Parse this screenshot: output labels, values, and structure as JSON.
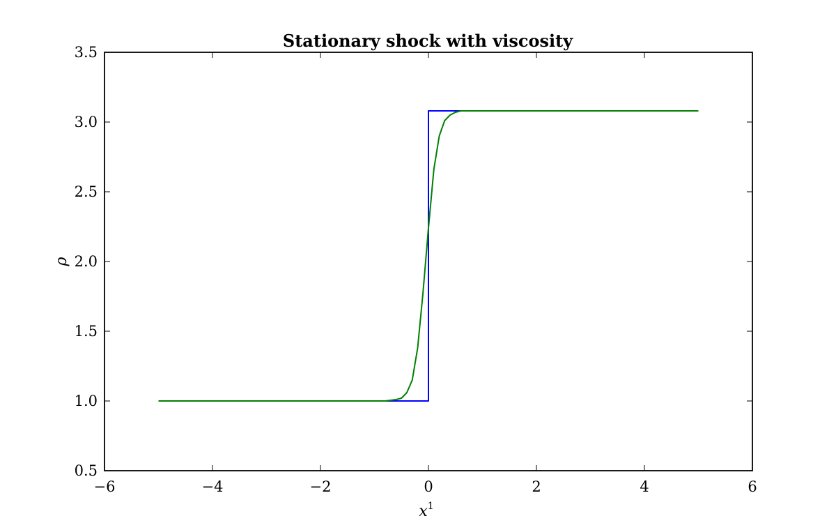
{
  "chart_data": {
    "type": "line",
    "title": "Stationary shock with viscosity",
    "xlabel": "x",
    "xlabel_superscript": "1",
    "ylabel": "ρ",
    "xlim": [
      -6,
      6
    ],
    "ylim": [
      0.5,
      3.5
    ],
    "xticks": [
      -6,
      -4,
      -2,
      0,
      2,
      4,
      6
    ],
    "xtick_labels": [
      "−6",
      "−4",
      "−2",
      "0",
      "2",
      "4",
      "6"
    ],
    "yticks": [
      0.5,
      1.0,
      1.5,
      2.0,
      2.5,
      3.0,
      3.5
    ],
    "ytick_labels": [
      "0.5",
      "1.0",
      "1.5",
      "2.0",
      "2.5",
      "3.0",
      "3.5"
    ],
    "grid": false,
    "legend": "none",
    "series": [
      {
        "color": "#0000ff",
        "x": [
          -5.0,
          0.0,
          0.0,
          5.0
        ],
        "y": [
          1.0,
          1.0,
          3.08,
          3.08
        ]
      },
      {
        "color": "#008000",
        "x": [
          -5.0,
          -1.0,
          -0.8,
          -0.6,
          -0.5,
          -0.4,
          -0.3,
          -0.2,
          -0.1,
          0.0,
          0.1,
          0.2,
          0.3,
          0.4,
          0.5,
          0.6,
          0.8,
          1.0,
          5.0
        ],
        "y": [
          1.0,
          1.0,
          1.0,
          1.01,
          1.02,
          1.06,
          1.15,
          1.38,
          1.78,
          2.24,
          2.66,
          2.9,
          3.01,
          3.05,
          3.07,
          3.08,
          3.08,
          3.08,
          3.08
        ]
      }
    ]
  }
}
